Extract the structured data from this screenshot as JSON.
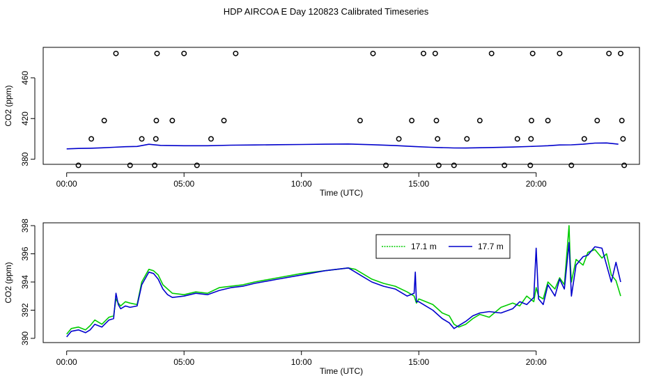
{
  "page": {
    "title": "HDP AIRCOA E  Day 120823  Calibrated Timeseries"
  },
  "colors": {
    "green": "#00cc00",
    "blue": "#0000cc",
    "axis": "#000000"
  },
  "chart_data": [
    {
      "type": "line",
      "title": "",
      "xlabel": "Time (UTC)",
      "ylabel": "CO2 (ppm)",
      "xlim": [
        -1.0,
        24.4
      ],
      "ylim": [
        375,
        490
      ],
      "xticks": [
        0,
        5,
        10,
        15,
        20
      ],
      "xtick_labels": [
        "00:00",
        "05:00",
        "10:00",
        "15:00",
        "20:00"
      ],
      "yticks": [
        380,
        420,
        460
      ],
      "ytick_labels": [
        "380",
        "420",
        "460"
      ],
      "calibration_points": {
        "marker": "open-circle",
        "x": [
          0.5,
          1.05,
          1.6,
          2.1,
          2.7,
          3.2,
          3.75,
          3.8,
          3.82,
          3.85,
          4.5,
          5.0,
          5.55,
          6.15,
          6.7,
          7.2,
          12.5,
          13.05,
          13.6,
          14.15,
          14.7,
          15.2,
          15.7,
          15.75,
          15.8,
          15.85,
          16.5,
          17.05,
          17.6,
          18.1,
          18.65,
          19.2,
          19.75,
          19.78,
          19.8,
          19.85,
          20.5,
          21.0,
          21.5,
          22.05,
          22.6,
          23.1,
          23.6,
          23.65,
          23.7,
          23.75
        ],
        "y": [
          374,
          400,
          418,
          484,
          374,
          400,
          374,
          400,
          418,
          484,
          418,
          484,
          374,
          400,
          418,
          484,
          418,
          484,
          374,
          400,
          418,
          484,
          484,
          418,
          400,
          374,
          374,
          400,
          418,
          484,
          374,
          400,
          374,
          400,
          418,
          484,
          418,
          484,
          374,
          400,
          418,
          484,
          484,
          418,
          400,
          374
        ]
      },
      "series": [
        {
          "color": "#0000cc",
          "x": [
            0,
            0.5,
            1,
            1.5,
            2,
            2.5,
            3,
            3.5,
            4,
            5,
            6,
            7,
            8,
            9,
            10,
            11,
            12,
            13,
            14,
            14.8,
            15.5,
            16.5,
            17,
            18,
            19,
            20,
            20.5,
            21,
            21.5,
            22,
            22.5,
            23,
            23.5
          ],
          "y": [
            390.2,
            390.6,
            390.8,
            391.2,
            391.8,
            392.3,
            392.6,
            394.7,
            393.6,
            393.3,
            393.3,
            393.8,
            394.0,
            394.3,
            394.5,
            394.8,
            395.0,
            394.3,
            393.4,
            392.5,
            391.8,
            391.1,
            391.0,
            391.5,
            392.0,
            392.8,
            393.3,
            394.0,
            394.2,
            394.8,
            395.9,
            396.0,
            394.8
          ]
        }
      ]
    },
    {
      "type": "line",
      "title": "",
      "xlabel": "Time (UTC)",
      "ylabel": "CO2 (ppm)",
      "xlim": [
        -1.0,
        24.4
      ],
      "ylim": [
        389.7,
        398.2
      ],
      "xticks": [
        0,
        5,
        10,
        15,
        20
      ],
      "xtick_labels": [
        "00:00",
        "05:00",
        "10:00",
        "15:00",
        "20:00"
      ],
      "yticks": [
        390,
        392,
        394,
        396,
        398
      ],
      "ytick_labels": [
        "390",
        "392",
        "394",
        "396",
        "398"
      ],
      "legend": {
        "placement": "top-right"
      },
      "series": [
        {
          "name": "17.1 m",
          "color": "#00cc00",
          "x": [
            0,
            0.2,
            0.5,
            0.8,
            1.0,
            1.2,
            1.5,
            1.8,
            2.0,
            2.1,
            2.2,
            2.3,
            2.5,
            2.7,
            3.0,
            3.2,
            3.4,
            3.5,
            3.7,
            3.9,
            4.1,
            4.3,
            4.5,
            5.0,
            5.5,
            6.0,
            6.5,
            7.0,
            7.5,
            8.0,
            9.0,
            10.0,
            11.0,
            12.0,
            12.3,
            12.6,
            13.0,
            13.5,
            14.0,
            14.5,
            14.8,
            14.9,
            15.0,
            15.3,
            15.6,
            16.0,
            16.3,
            16.5,
            16.7,
            17.0,
            17.3,
            17.6,
            18.0,
            18.5,
            19.0,
            19.3,
            19.6,
            19.9,
            20.0,
            20.1,
            20.3,
            20.5,
            20.8,
            21.0,
            21.2,
            21.4,
            21.45,
            21.5,
            21.7,
            22.0,
            22.2,
            22.5,
            22.8,
            23.0,
            23.2,
            23.4,
            23.6
          ],
          "y": [
            390.3,
            390.7,
            390.8,
            390.6,
            390.9,
            391.3,
            391.0,
            391.5,
            391.6,
            392.8,
            392.5,
            392.3,
            392.6,
            392.5,
            392.4,
            394.0,
            394.6,
            394.9,
            394.8,
            394.5,
            393.8,
            393.5,
            393.2,
            393.1,
            393.3,
            393.2,
            393.6,
            393.7,
            393.8,
            394.0,
            394.3,
            394.6,
            394.8,
            395.0,
            394.9,
            394.6,
            394.2,
            393.9,
            393.7,
            393.3,
            393.0,
            392.5,
            392.8,
            392.6,
            392.4,
            391.8,
            391.6,
            391.0,
            390.8,
            391.0,
            391.4,
            391.7,
            391.5,
            392.2,
            392.5,
            392.3,
            393.0,
            392.6,
            393.6,
            393.0,
            392.8,
            394.0,
            393.5,
            394.3,
            393.8,
            398.0,
            395.5,
            394.0,
            395.6,
            395.2,
            396.1,
            396.3,
            395.7,
            396.0,
            394.5,
            394.1,
            393.0
          ]
        },
        {
          "name": "17.7 m",
          "color": "#0000cc",
          "x": [
            0,
            0.2,
            0.5,
            0.8,
            1.0,
            1.2,
            1.5,
            1.8,
            2.0,
            2.1,
            2.2,
            2.3,
            2.5,
            2.7,
            3.0,
            3.2,
            3.4,
            3.5,
            3.7,
            3.9,
            4.1,
            4.3,
            4.5,
            5.0,
            5.5,
            6.0,
            6.5,
            7.0,
            7.5,
            8.0,
            9.0,
            10.0,
            11.0,
            12.0,
            12.3,
            12.6,
            13.0,
            13.5,
            14.0,
            14.5,
            14.8,
            14.85,
            14.9,
            15.0,
            15.3,
            15.6,
            16.0,
            16.3,
            16.5,
            16.7,
            17.0,
            17.3,
            17.6,
            18.0,
            18.5,
            19.0,
            19.3,
            19.6,
            19.9,
            20.0,
            20.1,
            20.3,
            20.5,
            20.8,
            21.0,
            21.2,
            21.4,
            21.5,
            21.7,
            22.0,
            22.2,
            22.5,
            22.8,
            23.0,
            23.2,
            23.4,
            23.6
          ],
          "y": [
            390.1,
            390.5,
            390.6,
            390.4,
            390.6,
            391.0,
            390.8,
            391.3,
            391.4,
            393.2,
            392.4,
            392.1,
            392.3,
            392.2,
            392.3,
            393.8,
            394.4,
            394.7,
            394.6,
            394.2,
            393.5,
            393.1,
            392.9,
            393.0,
            393.2,
            393.1,
            393.4,
            393.6,
            393.7,
            393.9,
            394.2,
            394.5,
            394.8,
            395.0,
            394.7,
            394.4,
            394.0,
            393.7,
            393.5,
            393.0,
            393.2,
            394.7,
            392.6,
            392.6,
            392.3,
            392.0,
            391.4,
            391.1,
            390.7,
            390.9,
            391.2,
            391.6,
            391.8,
            391.9,
            391.8,
            392.1,
            392.6,
            392.4,
            392.9,
            396.4,
            392.8,
            392.4,
            393.8,
            393.0,
            394.2,
            393.5,
            396.8,
            393.0,
            395.2,
            395.8,
            395.9,
            396.5,
            396.4,
            395.2,
            394.0,
            395.4,
            394.0
          ]
        }
      ]
    }
  ]
}
